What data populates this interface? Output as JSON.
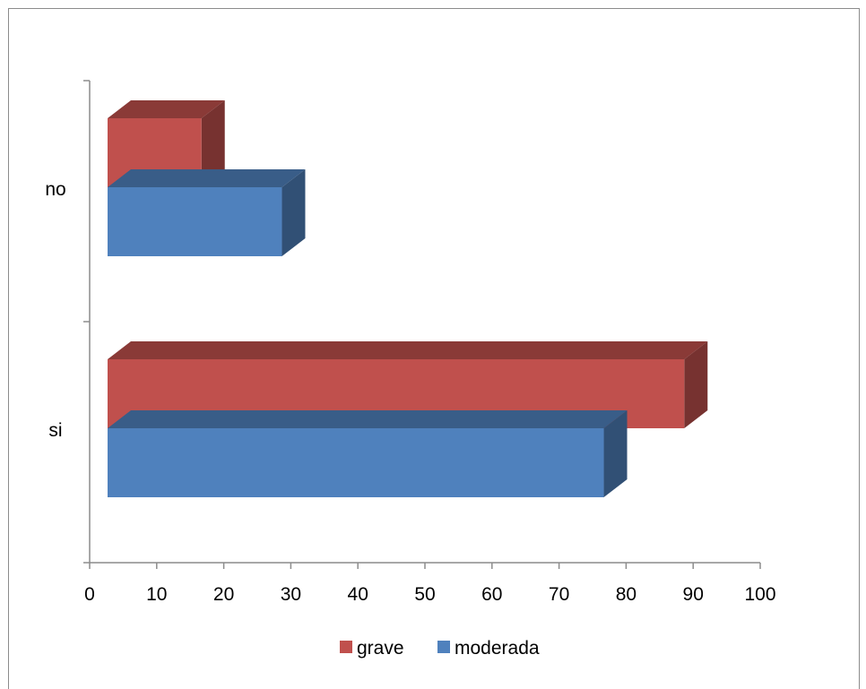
{
  "chart_data": {
    "type": "bar",
    "orientation": "horizontal",
    "style": "3d-clustered",
    "categories": [
      "si",
      "no"
    ],
    "series": [
      {
        "name": "moderada",
        "values": [
          74,
          26
        ],
        "color": "#4f81bd"
      },
      {
        "name": "grave",
        "values": [
          86,
          14
        ],
        "color": "#c0504d"
      }
    ],
    "xlim": [
      0,
      100
    ],
    "x_ticks": [
      "0",
      "10",
      "20",
      "30",
      "40",
      "50",
      "60",
      "70",
      "80",
      "90",
      "100"
    ],
    "grid": false,
    "legend_position": "bottom",
    "legend": [
      "grave",
      "moderada"
    ]
  }
}
